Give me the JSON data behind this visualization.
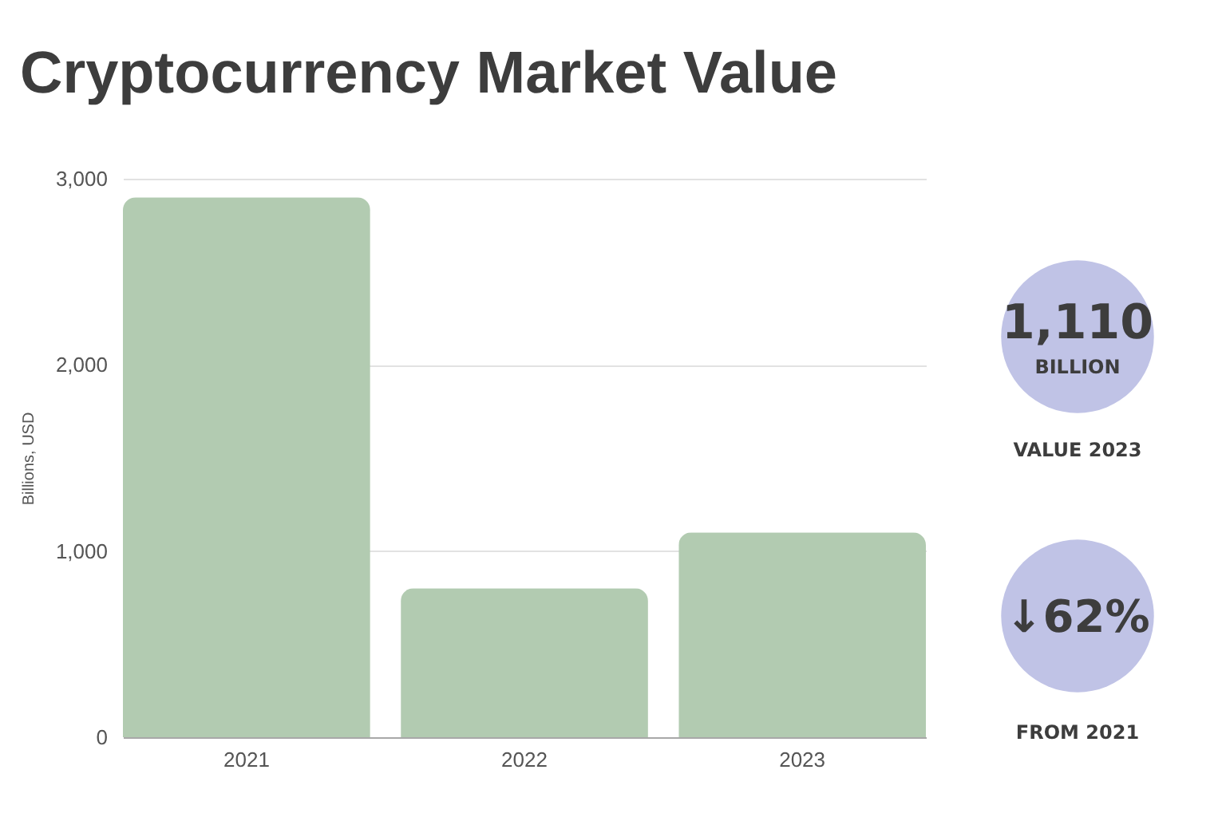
{
  "chart_data": [
    {
      "type": "bar",
      "title": "Cryptocurrency Market Value",
      "ylabel": "Billions, USD",
      "categories": [
        "2021",
        "2022",
        "2023"
      ],
      "values": [
        2900,
        800,
        1100
      ],
      "color": "#b2cbb1",
      "ylim": [
        0,
        3000
      ],
      "yticks": [
        0,
        {
          "value": 1000,
          "label": "1,000"
        },
        {
          "value": 2000,
          "label": "2,000"
        },
        {
          "value": 3000,
          "label": "3,000"
        }
      ],
      "grid": "y"
    },
    {
      "type": "other",
      "annotations": [
        "1,110",
        "BILLION",
        "VALUE 2023",
        "↓62%",
        "FROM 2021"
      ],
      "color": "#c0c3e6"
    }
  ]
}
